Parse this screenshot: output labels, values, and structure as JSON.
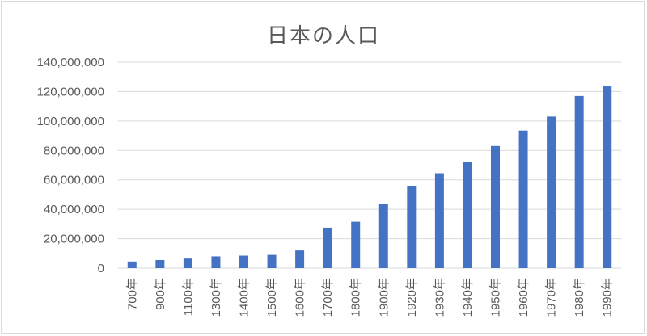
{
  "chart_data": {
    "type": "bar",
    "title": "日本の人口",
    "categories": [
      "700年",
      "900年",
      "1100年",
      "1300年",
      "1400年",
      "1500年",
      "1600年",
      "1700年",
      "1800年",
      "1900年",
      "1920年",
      "1930年",
      "1940年",
      "1950年",
      "1960年",
      "1970年",
      "1980年",
      "1990年"
    ],
    "values": [
      4500000,
      5500000,
      6500000,
      8000000,
      8500000,
      9000000,
      12000000,
      27500000,
      31500000,
      43500000,
      56000000,
      64500000,
      72000000,
      83000000,
      93500000,
      103000000,
      117000000,
      123500000
    ],
    "ylim": [
      0,
      140000000
    ],
    "yticks": [
      "0",
      "20,000,000",
      "40,000,000",
      "60,000,000",
      "80,000,000",
      "100,000,000",
      "120,000,000",
      "140,000,000"
    ],
    "grid": true,
    "bar_color": "#4472c4",
    "grid_color": "#d9d9d9"
  }
}
